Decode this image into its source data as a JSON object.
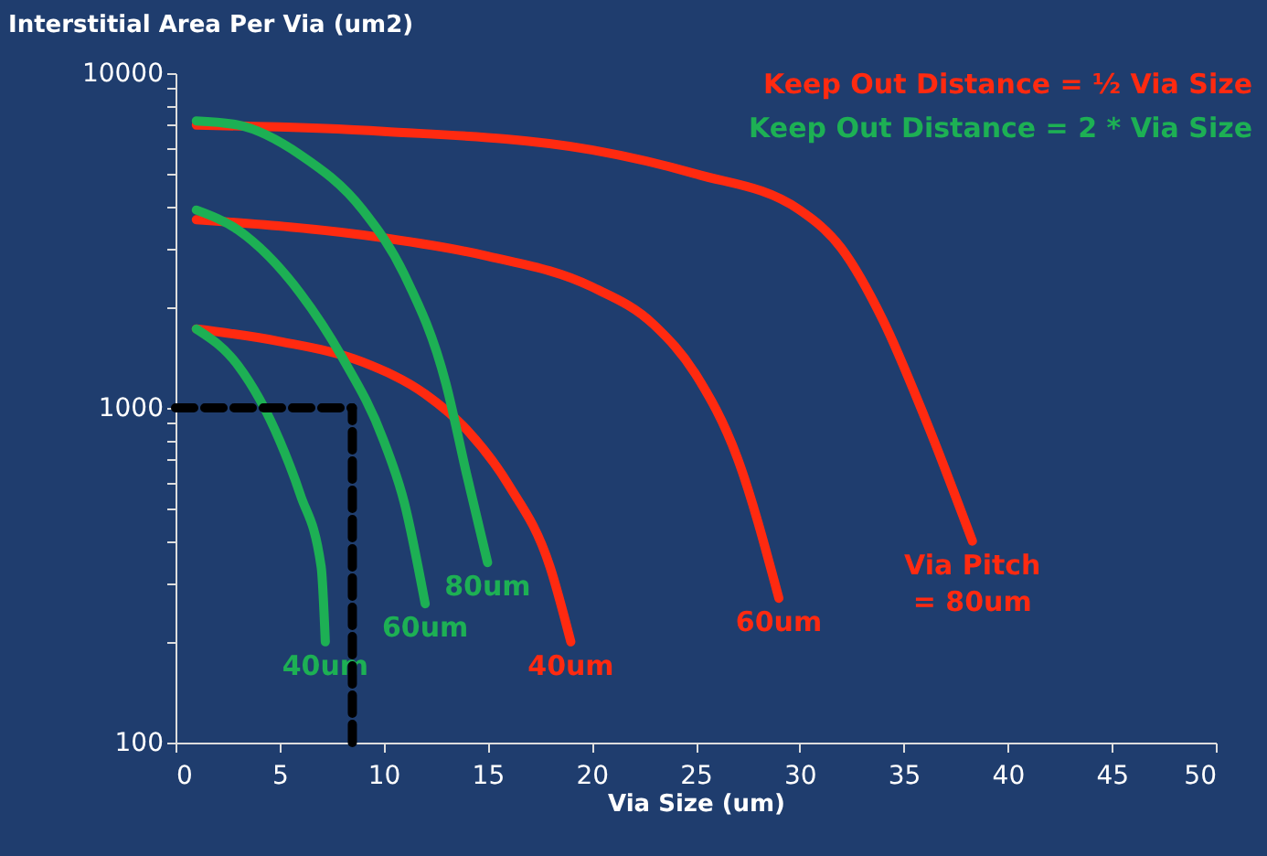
{
  "chart_data": {
    "type": "line",
    "ylabel": "Interstitial Area  Per Via (um2)",
    "xlabel": "Via Size (um)",
    "log": "y",
    "grid": false,
    "marker": "none",
    "line_style": "solid",
    "xlim": [
      0,
      50
    ],
    "xticks": [
      0,
      5,
      10,
      15,
      20,
      25,
      30,
      35,
      40,
      45,
      50
    ],
    "ylim": [
      100,
      10000
    ],
    "yticks": [
      100,
      {
        "value": 200,
        "label": null
      },
      {
        "value": 300,
        "label": null
      },
      {
        "value": 400,
        "label": null
      },
      {
        "value": 500,
        "label": null
      },
      {
        "value": 600,
        "label": null
      },
      {
        "value": 700,
        "label": null
      },
      {
        "value": 800,
        "label": null
      },
      {
        "value": 900,
        "label": null
      },
      1000,
      {
        "value": 2000,
        "label": null
      },
      {
        "value": 3000,
        "label": null
      },
      {
        "value": 4000,
        "label": null
      },
      {
        "value": 5000,
        "label": null
      },
      {
        "value": 6000,
        "label": null
      },
      {
        "value": 7000,
        "label": null
      },
      {
        "value": 8000,
        "label": null
      },
      {
        "value": 9000,
        "label": null
      },
      10000
    ],
    "annotations": [
      "Keep Out Distance  =  ½ Via Size",
      "Keep Out Distance = 2 * Via Size"
    ],
    "series": [
      {
        "name": "Via Pitch\n= 80um",
        "color": "#ff2a10",
        "x": [
          1,
          10,
          20,
          25,
          30,
          32,
          34,
          36,
          38.3
        ],
        "values": [
          7000,
          6700,
          5900,
          5000,
          3900,
          3000,
          1830,
          940,
          400
        ]
      },
      {
        "name": "60um",
        "color": "#ff2a10",
        "x": [
          1,
          10,
          15,
          20,
          23,
          25,
          27,
          29
        ],
        "values": [
          3650,
          3220,
          2840,
          2300,
          1770,
          1260,
          710,
          270
        ]
      },
      {
        "name": "40um",
        "color": "#ff2a10",
        "x": [
          1,
          5,
          9,
          12,
          14,
          16,
          18,
          19
        ],
        "values": [
          1720,
          1580,
          1370,
          1100,
          860,
          590,
          335,
          200
        ]
      },
      {
        "name": "80um",
        "color": "#1db054",
        "x": [
          1,
          3,
          6,
          9,
          11,
          13,
          14,
          15
        ],
        "values": [
          7200,
          7000,
          5700,
          3900,
          2500,
          1180,
          630,
          345
        ]
      },
      {
        "name": "60um",
        "color": "#1db054",
        "x": [
          1,
          3,
          6,
          8,
          10,
          11,
          12
        ],
        "values": [
          3900,
          3400,
          2200,
          1420,
          800,
          520,
          260
        ]
      },
      {
        "name": "40um",
        "color": "#1db054",
        "x": [
          1,
          3,
          5,
          6,
          7,
          7.2
        ],
        "values": [
          1720,
          1340,
          800,
          550,
          335,
          200
        ]
      },
      {
        "color": "#000000",
        "line_style": "dashed",
        "x": [
          0,
          8.5
        ],
        "values": [
          1000,
          1000
        ]
      },
      {
        "color": "#000000",
        "line_style": "dashed",
        "x": [
          8.5,
          8.5
        ],
        "values": [
          100,
          1000
        ]
      }
    ]
  }
}
